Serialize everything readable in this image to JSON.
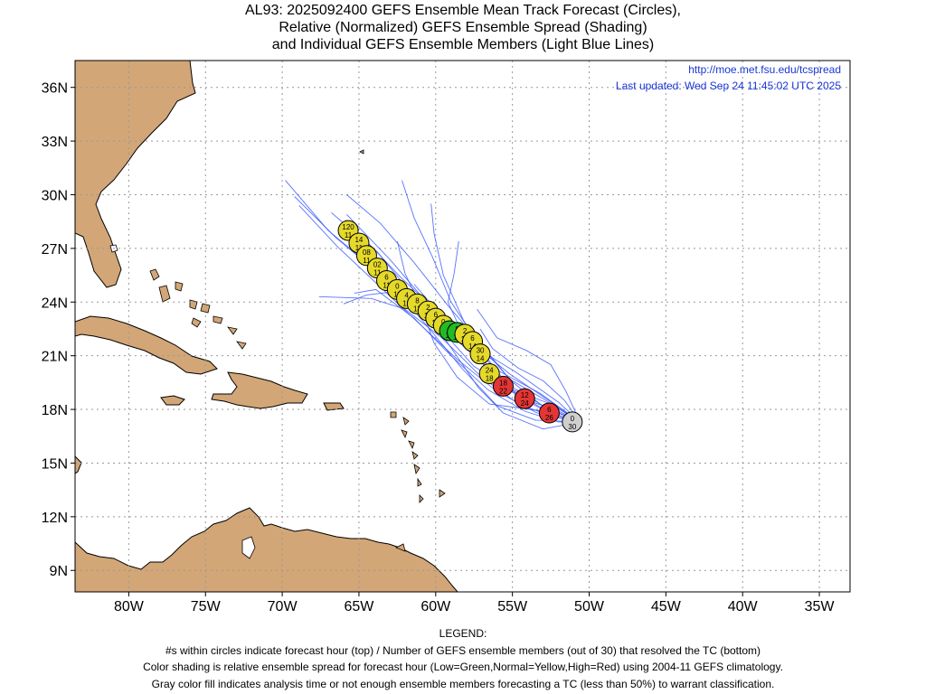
{
  "title": {
    "line1": "AL93: 2025092400 GEFS Ensemble Mean Track Forecast (Circles),",
    "line2": "Relative (Normalized) GEFS Ensemble Spread (Shading)",
    "line3": "and Individual GEFS Ensemble Members (Light Blue Lines)"
  },
  "source": {
    "url": "http://moe.met.fsu.edu/tcspread",
    "updated": "Last updated: Wed Sep 24 11:45:02 UTC 2025"
  },
  "colors": {
    "land": "#d2a677",
    "members": "#3b5bff",
    "grid": "#999999",
    "low": "#22bb22",
    "normal": "#e5d92a",
    "high": "#e53535",
    "analysis": "#cfcfcf",
    "link": "#1a36d6"
  },
  "chart_data": {
    "type": "map-track",
    "xlim": [
      -83.5,
      -33.0
    ],
    "ylim": [
      7.8,
      37.5
    ],
    "lon_ticks": [
      {
        "v": -80,
        "label": "80W"
      },
      {
        "v": -75,
        "label": "75W"
      },
      {
        "v": -70,
        "label": "70W"
      },
      {
        "v": -65,
        "label": "65W"
      },
      {
        "v": -60,
        "label": "60W"
      },
      {
        "v": -55,
        "label": "55W"
      },
      {
        "v": -50,
        "label": "50W"
      },
      {
        "v": -45,
        "label": "45W"
      },
      {
        "v": -40,
        "label": "40W"
      },
      {
        "v": -35,
        "label": "35W"
      }
    ],
    "lat_ticks": [
      {
        "v": 9,
        "label": "9N"
      },
      {
        "v": 12,
        "label": "12N"
      },
      {
        "v": 15,
        "label": "15N"
      },
      {
        "v": 18,
        "label": "18N"
      },
      {
        "v": 21,
        "label": "21N"
      },
      {
        "v": 24,
        "label": "24N"
      },
      {
        "v": 27,
        "label": "27N"
      },
      {
        "v": 30,
        "label": "30N"
      },
      {
        "v": 33,
        "label": "33N"
      },
      {
        "v": 36,
        "label": "36N"
      }
    ],
    "track": [
      {
        "lon": -65.7,
        "lat": 28.0,
        "top": "120",
        "bottom": "11",
        "cls": "normal"
      },
      {
        "lon": -65.0,
        "lat": 27.3,
        "top": "14",
        "bottom": "11",
        "cls": "normal"
      },
      {
        "lon": -64.5,
        "lat": 26.6,
        "top": "08",
        "bottom": "11",
        "cls": "normal"
      },
      {
        "lon": -63.8,
        "lat": 25.9,
        "top": "02",
        "bottom": "11",
        "cls": "normal"
      },
      {
        "lon": -63.2,
        "lat": 25.2,
        "top": "6",
        "bottom": "11",
        "cls": "normal"
      },
      {
        "lon": -62.5,
        "lat": 24.7,
        "top": "0",
        "bottom": "11",
        "cls": "normal"
      },
      {
        "lon": -61.9,
        "lat": 24.2,
        "top": "4",
        "bottom": "12",
        "cls": "normal"
      },
      {
        "lon": -61.2,
        "lat": 23.9,
        "top": "8",
        "bottom": "13",
        "cls": "normal"
      },
      {
        "lon": -60.5,
        "lat": 23.5,
        "top": "2",
        "bottom": "13",
        "cls": "normal"
      },
      {
        "lon": -60.0,
        "lat": 23.1,
        "top": "6",
        "bottom": "13",
        "cls": "normal"
      },
      {
        "lon": -59.5,
        "lat": 22.7,
        "top": "0",
        "bottom": "13",
        "cls": "normal"
      },
      {
        "lon": -59.1,
        "lat": 22.4,
        "top": "4",
        "bottom": "13",
        "cls": "low"
      },
      {
        "lon": -58.6,
        "lat": 22.3,
        "top": "8",
        "bottom": "13",
        "cls": "low"
      },
      {
        "lon": -58.1,
        "lat": 22.2,
        "top": "2",
        "bottom": "13",
        "cls": "normal"
      },
      {
        "lon": -57.6,
        "lat": 21.8,
        "top": "6",
        "bottom": "14",
        "cls": "normal"
      },
      {
        "lon": -57.1,
        "lat": 21.1,
        "top": "30",
        "bottom": "14",
        "cls": "normal"
      },
      {
        "lon": -56.5,
        "lat": 20.0,
        "top": "24",
        "bottom": "18",
        "cls": "normal"
      },
      {
        "lon": -55.6,
        "lat": 19.3,
        "top": "18",
        "bottom": "22",
        "cls": "high"
      },
      {
        "lon": -54.2,
        "lat": 18.6,
        "top": "12",
        "bottom": "24",
        "cls": "high"
      },
      {
        "lon": -52.6,
        "lat": 17.8,
        "top": "6",
        "bottom": "26",
        "cls": "high"
      },
      {
        "lon": -51.1,
        "lat": 17.3,
        "top": "0",
        "bottom": "30",
        "cls": "analysis"
      }
    ],
    "members": [
      [
        [
          -50.6,
          17.3
        ],
        [
          -52.5,
          17.8
        ],
        [
          -55.0,
          19.0
        ],
        [
          -57.5,
          21.0
        ],
        [
          -60.5,
          23.3
        ],
        [
          -63.5,
          25.5
        ],
        [
          -67.0,
          28.0
        ],
        [
          -69.8,
          30.8
        ]
      ],
      [
        [
          -50.6,
          17.3
        ],
        [
          -53.0,
          18.2
        ],
        [
          -55.5,
          19.5
        ],
        [
          -58.0,
          21.4
        ],
        [
          -61.0,
          23.6
        ],
        [
          -64.0,
          25.8
        ],
        [
          -66.5,
          27.6
        ],
        [
          -69.2,
          29.9
        ]
      ],
      [
        [
          -50.6,
          17.3
        ],
        [
          -52.8,
          18.6
        ],
        [
          -55.2,
          20.0
        ],
        [
          -57.8,
          21.8
        ],
        [
          -60.2,
          23.7
        ],
        [
          -62.3,
          25.4
        ],
        [
          -64.5,
          27.4
        ]
      ],
      [
        [
          -50.6,
          17.3
        ],
        [
          -53.2,
          18.9
        ],
        [
          -56.0,
          20.2
        ],
        [
          -58.5,
          22.2
        ],
        [
          -60.8,
          24.2
        ],
        [
          -63.0,
          26.4
        ],
        [
          -65.8,
          28.9
        ]
      ],
      [
        [
          -50.6,
          17.3
        ],
        [
          -52.4,
          17.6
        ],
        [
          -54.6,
          18.3
        ],
        [
          -57.0,
          19.8
        ],
        [
          -59.6,
          22.0
        ],
        [
          -62.0,
          23.6
        ],
        [
          -64.2,
          24.2
        ],
        [
          -67.6,
          24.3
        ]
      ],
      [
        [
          -50.6,
          17.3
        ],
        [
          -53.5,
          17.4
        ],
        [
          -56.0,
          18.2
        ],
        [
          -58.3,
          20.3
        ],
        [
          -60.4,
          22.5
        ],
        [
          -62.5,
          24.6
        ],
        [
          -64.5,
          24.4
        ],
        [
          -66.0,
          23.9
        ]
      ],
      [
        [
          -50.6,
          17.3
        ],
        [
          -52.0,
          18.4
        ],
        [
          -54.8,
          20.1
        ],
        [
          -56.9,
          21.2
        ],
        [
          -58.4,
          22.5
        ],
        [
          -59.2,
          24.0
        ],
        [
          -58.8,
          25.6
        ],
        [
          -58.5,
          27.4
        ]
      ],
      [
        [
          -50.6,
          17.3
        ],
        [
          -52.8,
          18.5
        ],
        [
          -55.2,
          19.7
        ],
        [
          -57.3,
          21.8
        ],
        [
          -59.0,
          24.0
        ],
        [
          -60.2,
          26.5
        ],
        [
          -61.4,
          28.7
        ],
        [
          -62.2,
          30.8
        ]
      ],
      [
        [
          -50.6,
          17.3
        ],
        [
          -52.2,
          18.0
        ],
        [
          -54.4,
          18.6
        ],
        [
          -56.4,
          20.3
        ],
        [
          -58.6,
          22.1
        ],
        [
          -60.0,
          23.6
        ],
        [
          -61.4,
          25.0
        ]
      ],
      [
        [
          -50.6,
          17.3
        ],
        [
          -53.0,
          17.9
        ],
        [
          -56.5,
          18.3
        ],
        [
          -58.6,
          19.8
        ],
        [
          -60.1,
          21.7
        ],
        [
          -61.0,
          23.8
        ],
        [
          -62.0,
          25.6
        ],
        [
          -62.5,
          27.4
        ]
      ],
      [
        [
          -50.6,
          17.3
        ],
        [
          -51.6,
          18.5
        ],
        [
          -53.0,
          19.6
        ],
        [
          -54.6,
          20.3
        ],
        [
          -56.3,
          21.4
        ],
        [
          -57.1,
          22.5
        ]
      ],
      [
        [
          -50.6,
          17.3
        ],
        [
          -53.0,
          16.9
        ],
        [
          -55.6,
          17.8
        ],
        [
          -57.2,
          19.2
        ],
        [
          -58.8,
          21.2
        ],
        [
          -60.5,
          23.3
        ],
        [
          -62.8,
          25.4
        ],
        [
          -65.5,
          27.9
        ]
      ],
      [
        [
          -50.6,
          17.3
        ],
        [
          -52.5,
          18.3
        ],
        [
          -55.0,
          19.1
        ],
        [
          -57.5,
          20.4
        ],
        [
          -59.8,
          22.6
        ],
        [
          -61.6,
          24.5
        ],
        [
          -63.8,
          26.8
        ],
        [
          -66.8,
          29.0
        ]
      ],
      [
        [
          -50.6,
          17.3
        ],
        [
          -51.5,
          19.0
        ],
        [
          -52.5,
          20.5
        ],
        [
          -54.1,
          21.3
        ],
        [
          -56.0,
          22.0
        ],
        [
          -57.3,
          23.6
        ]
      ],
      [
        [
          -50.6,
          17.3
        ],
        [
          -52.6,
          17.8
        ],
        [
          -54.8,
          18.8
        ],
        [
          -56.5,
          20.7
        ],
        [
          -58.2,
          23.0
        ],
        [
          -59.5,
          25.5
        ],
        [
          -60.1,
          27.8
        ],
        [
          -60.3,
          29.5
        ]
      ],
      [
        [
          -50.6,
          17.3
        ],
        [
          -53.4,
          17.8
        ],
        [
          -56.0,
          19.0
        ],
        [
          -58.6,
          20.8
        ],
        [
          -61.2,
          22.9
        ],
        [
          -63.8,
          25.0
        ],
        [
          -66.4,
          27.1
        ],
        [
          -68.9,
          29.4
        ]
      ],
      [
        [
          -50.6,
          17.3
        ],
        [
          -52.0,
          17.3
        ],
        [
          -54.2,
          17.9
        ],
        [
          -56.6,
          19.1
        ],
        [
          -59.0,
          21.0
        ],
        [
          -61.4,
          23.1
        ],
        [
          -63.9,
          24.7
        ],
        [
          -65.3,
          24.5
        ]
      ],
      [
        [
          -50.6,
          17.3
        ],
        [
          -52.9,
          18.1
        ],
        [
          -55.1,
          19.6
        ],
        [
          -57.0,
          21.6
        ],
        [
          -59.2,
          23.8
        ],
        [
          -61.4,
          26.2
        ],
        [
          -63.6,
          28.4
        ],
        [
          -65.8,
          30.0
        ]
      ]
    ]
  },
  "legend": {
    "heading": "LEGEND:",
    "line1": "#s within circles indicate forecast hour (top) / Number of GEFS ensemble members (out of 30) that resolved the TC (bottom)",
    "line2": "Color shading is relative ensemble spread for forecast hour (Low=Green,Normal=Yellow,High=Red) using 2004-11 GEFS climatology.",
    "line3": "Gray color fill indicates analysis time or not enough ensemble members forecasting a TC (less than 50%) to warrant classification."
  }
}
